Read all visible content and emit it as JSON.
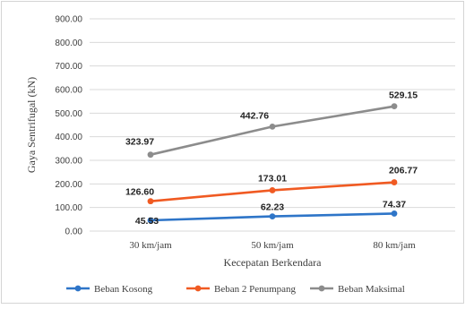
{
  "chart_data": {
    "type": "line",
    "categories": [
      "30 km/jam",
      "50 km/jam",
      "80 km/jam"
    ],
    "series": [
      {
        "name": "Beban Kosong",
        "values": [
          45.53,
          62.23,
          74.37
        ],
        "labels": [
          "45.53",
          "62.23",
          "74.37"
        ],
        "color": "#2e75c8"
      },
      {
        "name": "Beban 2 Penumpang",
        "values": [
          126.6,
          173.01,
          206.77
        ],
        "labels": [
          "126.60",
          "173.01",
          "206.77"
        ],
        "color": "#f05a22"
      },
      {
        "name": "Beban Maksimal",
        "values": [
          323.97,
          442.76,
          529.15
        ],
        "labels": [
          "323.97",
          "442.76",
          "529.15"
        ],
        "color": "#8c8c8c"
      }
    ],
    "xlabel": "Kecepatan Berkendara",
    "ylabel": "Gaya Sentrifugal (kN)",
    "ylim": [
      0,
      900
    ],
    "yticks": [
      "0.00",
      "100.00",
      "200.00",
      "300.00",
      "400.00",
      "500.00",
      "600.00",
      "700.00",
      "800.00",
      "900.00"
    ],
    "grid": true,
    "legend_position": "bottom"
  }
}
